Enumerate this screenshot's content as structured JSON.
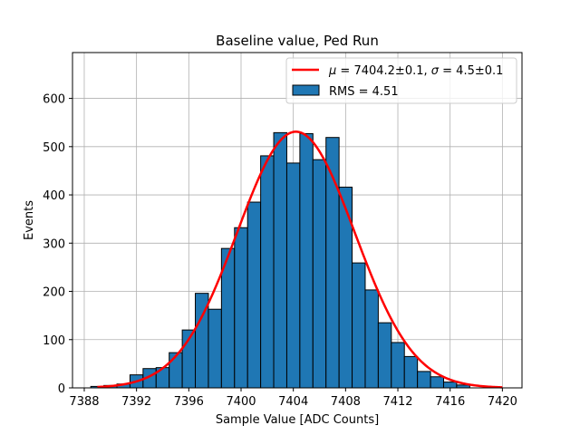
{
  "chart_data": {
    "type": "bar",
    "title": "Baseline value, Ped Run",
    "xlabel": "Sample Value [ADC Counts]",
    "ylabel": "Events",
    "xlim": [
      7387.1,
      7421.5
    ],
    "ylim": [
      0,
      695
    ],
    "xticks": [
      7388,
      7392,
      7396,
      7400,
      7404,
      7408,
      7412,
      7416,
      7420
    ],
    "yticks": [
      0,
      100,
      200,
      300,
      400,
      500,
      600
    ],
    "grid": true,
    "legend_position": "top-right",
    "histogram": {
      "name": "RMS = 4.51",
      "color": "#1f77b4",
      "edge_color": "#000000",
      "bin_edges": [
        7388.5,
        7389.5,
        7390.5,
        7391.5,
        7392.5,
        7393.5,
        7394.5,
        7395.5,
        7396.5,
        7397.5,
        7398.5,
        7399.5,
        7400.5,
        7401.5,
        7402.5,
        7403.5,
        7404.5,
        7405.5,
        7406.5,
        7407.5,
        7408.5,
        7409.5,
        7410.5,
        7411.5,
        7412.5,
        7413.5,
        7414.5,
        7415.5,
        7416.5,
        7417.5
      ],
      "counts": [
        3,
        5,
        8,
        27,
        40,
        42,
        73,
        120,
        196,
        163,
        289,
        332,
        385,
        481,
        529,
        466,
        527,
        473,
        519,
        416,
        259,
        203,
        135,
        94,
        65,
        34,
        23,
        12,
        6
      ]
    },
    "fit": {
      "name_parts": [
        "μ",
        " = 7404.2±0.1, ",
        "σ",
        " = 4.5±0.1"
      ],
      "type": "gaussian",
      "mu": 7404.2,
      "sigma": 4.5,
      "amplitude": 531,
      "x_range": [
        7389,
        7420
      ],
      "color": "#ff0000"
    }
  }
}
